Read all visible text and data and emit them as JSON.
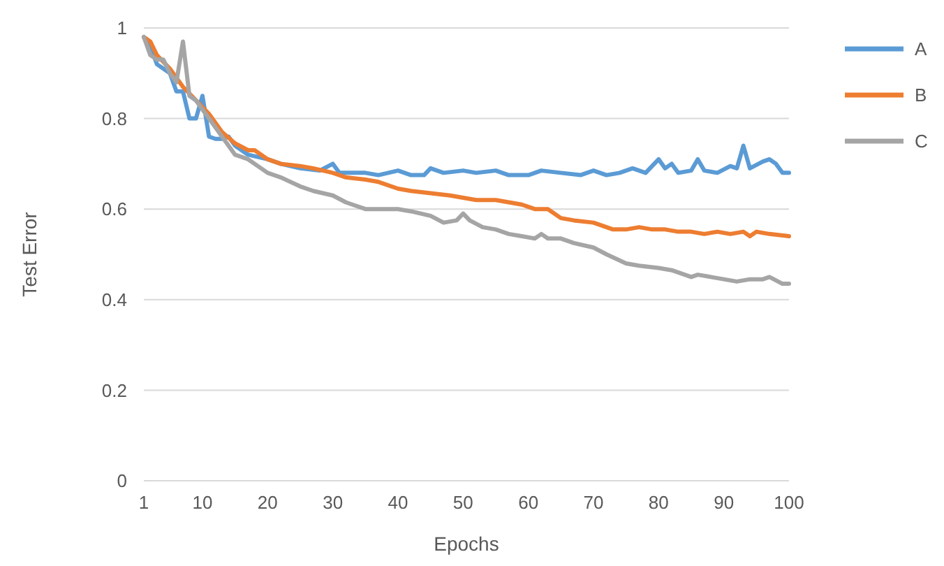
{
  "chart_data": {
    "type": "line",
    "xlabel": "Epochs",
    "ylabel": "Test Error",
    "xlim": [
      1,
      100
    ],
    "xticks": [
      1,
      10,
      20,
      30,
      40,
      50,
      60,
      70,
      80,
      90,
      100
    ],
    "ylim": [
      0,
      1
    ],
    "yticks": [
      0,
      0.2,
      0.4,
      0.6,
      0.8,
      1
    ],
    "grid": "y",
    "legend": "right",
    "marker": "none",
    "line_style": "solid",
    "series": [
      {
        "name": "A",
        "color": "#5b9bd5",
        "x": [
          1,
          2,
          3,
          4,
          5,
          6,
          7,
          8,
          9,
          10,
          11,
          12,
          13,
          14,
          15,
          17,
          20,
          22,
          25,
          28,
          30,
          31,
          33,
          35,
          37,
          40,
          42,
          44,
          45,
          47,
          50,
          52,
          55,
          57,
          60,
          62,
          65,
          68,
          70,
          72,
          74,
          76,
          78,
          80,
          81,
          82,
          83,
          85,
          86,
          87,
          89,
          91,
          92,
          93,
          94,
          96,
          97,
          98,
          99,
          100
        ],
        "values": [
          0.98,
          0.96,
          0.92,
          0.91,
          0.9,
          0.86,
          0.86,
          0.8,
          0.8,
          0.85,
          0.76,
          0.755,
          0.755,
          0.76,
          0.74,
          0.72,
          0.71,
          0.7,
          0.69,
          0.685,
          0.7,
          0.68,
          0.68,
          0.68,
          0.675,
          0.685,
          0.675,
          0.675,
          0.69,
          0.68,
          0.685,
          0.68,
          0.685,
          0.675,
          0.675,
          0.685,
          0.68,
          0.675,
          0.685,
          0.675,
          0.68,
          0.69,
          0.68,
          0.71,
          0.69,
          0.7,
          0.68,
          0.685,
          0.71,
          0.685,
          0.68,
          0.695,
          0.69,
          0.74,
          0.69,
          0.705,
          0.71,
          0.7,
          0.68,
          0.68
        ]
      },
      {
        "name": "B",
        "color": "#ed7d31",
        "x": [
          1,
          2,
          3,
          5,
          7,
          9,
          11,
          13,
          15,
          17,
          18,
          20,
          22,
          25,
          27,
          30,
          32,
          35,
          37,
          40,
          42,
          45,
          48,
          50,
          52,
          55,
          57,
          59,
          61,
          63,
          65,
          67,
          70,
          73,
          75,
          77,
          79,
          81,
          83,
          85,
          87,
          89,
          91,
          93,
          94,
          95,
          97,
          100
        ],
        "values": [
          0.98,
          0.97,
          0.94,
          0.91,
          0.87,
          0.84,
          0.81,
          0.77,
          0.745,
          0.73,
          0.73,
          0.71,
          0.7,
          0.695,
          0.69,
          0.68,
          0.67,
          0.665,
          0.66,
          0.645,
          0.64,
          0.635,
          0.63,
          0.625,
          0.62,
          0.62,
          0.615,
          0.61,
          0.6,
          0.6,
          0.58,
          0.575,
          0.57,
          0.555,
          0.555,
          0.56,
          0.555,
          0.555,
          0.55,
          0.55,
          0.545,
          0.55,
          0.545,
          0.55,
          0.54,
          0.55,
          0.545,
          0.54
        ]
      },
      {
        "name": "C",
        "color": "#a5a5a5",
        "x": [
          1,
          2,
          3,
          4,
          5,
          6,
          7,
          8,
          9,
          10,
          11,
          13,
          15,
          17,
          20,
          22,
          25,
          27,
          30,
          32,
          35,
          37,
          40,
          42,
          45,
          47,
          49,
          50,
          51,
          53,
          55,
          57,
          59,
          61,
          62,
          63,
          65,
          67,
          70,
          72,
          75,
          77,
          80,
          82,
          84,
          85,
          86,
          88,
          90,
          92,
          94,
          96,
          97,
          99,
          100
        ],
        "values": [
          0.98,
          0.94,
          0.93,
          0.93,
          0.9,
          0.88,
          0.97,
          0.85,
          0.84,
          0.82,
          0.8,
          0.76,
          0.72,
          0.71,
          0.68,
          0.67,
          0.65,
          0.64,
          0.63,
          0.615,
          0.6,
          0.6,
          0.6,
          0.595,
          0.585,
          0.57,
          0.575,
          0.59,
          0.575,
          0.56,
          0.555,
          0.545,
          0.54,
          0.535,
          0.545,
          0.535,
          0.535,
          0.525,
          0.515,
          0.5,
          0.48,
          0.475,
          0.47,
          0.465,
          0.455,
          0.45,
          0.455,
          0.45,
          0.445,
          0.44,
          0.445,
          0.445,
          0.45,
          0.435,
          0.435
        ]
      }
    ]
  }
}
